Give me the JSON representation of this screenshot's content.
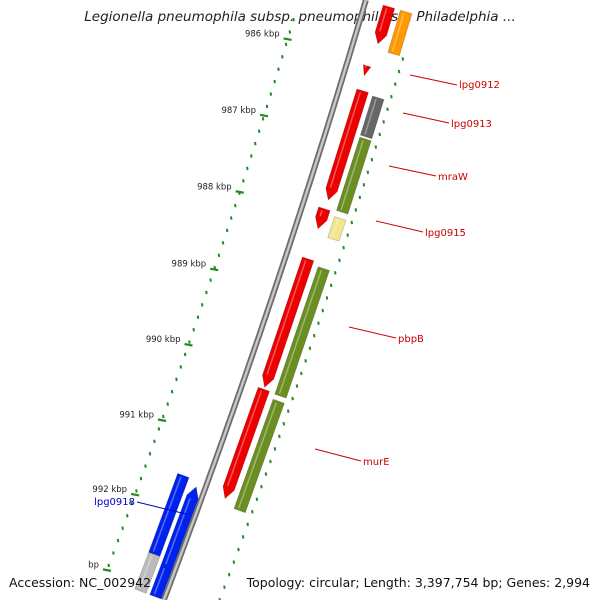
{
  "title": "Legionella pneumophila subsp. pneumophila str. Philadelphia ...",
  "footer": {
    "accession": "Accession: NC_002942",
    "topology": "Topology: circular; Length: 3,397,754 bp; Genes: 2,994"
  },
  "ticks": [
    {
      "label": "986 kbp"
    },
    {
      "label": "987 kbp"
    },
    {
      "label": "988 kbp"
    },
    {
      "label": "989 kbp"
    },
    {
      "label": "990 kbp"
    },
    {
      "label": "991 kbp"
    },
    {
      "label": "992 kbp"
    },
    {
      "label": "bp"
    }
  ],
  "genes": [
    {
      "label": "lpg0912",
      "color": "#cc0000"
    },
    {
      "label": "lpg0913",
      "color": "#cc0000"
    },
    {
      "label": "mraW",
      "color": "#cc0000"
    },
    {
      "label": "lpg0915",
      "color": "#cc0000"
    },
    {
      "label": "pbpB",
      "color": "#cc0000"
    },
    {
      "label": "murE",
      "color": "#cc0000"
    },
    {
      "label": "lpg0918",
      "color": "#0000cc"
    }
  ],
  "colors": {
    "red_gene": "#ee0000",
    "blue_gene": "#0022ee",
    "olive_cog": "#6b8e23",
    "gray_cog": "#666666",
    "orange_cog": "#ff9900",
    "yellow_cog": "#f0e68c",
    "tick_dots": "#228b22",
    "backbone": "#999999"
  }
}
